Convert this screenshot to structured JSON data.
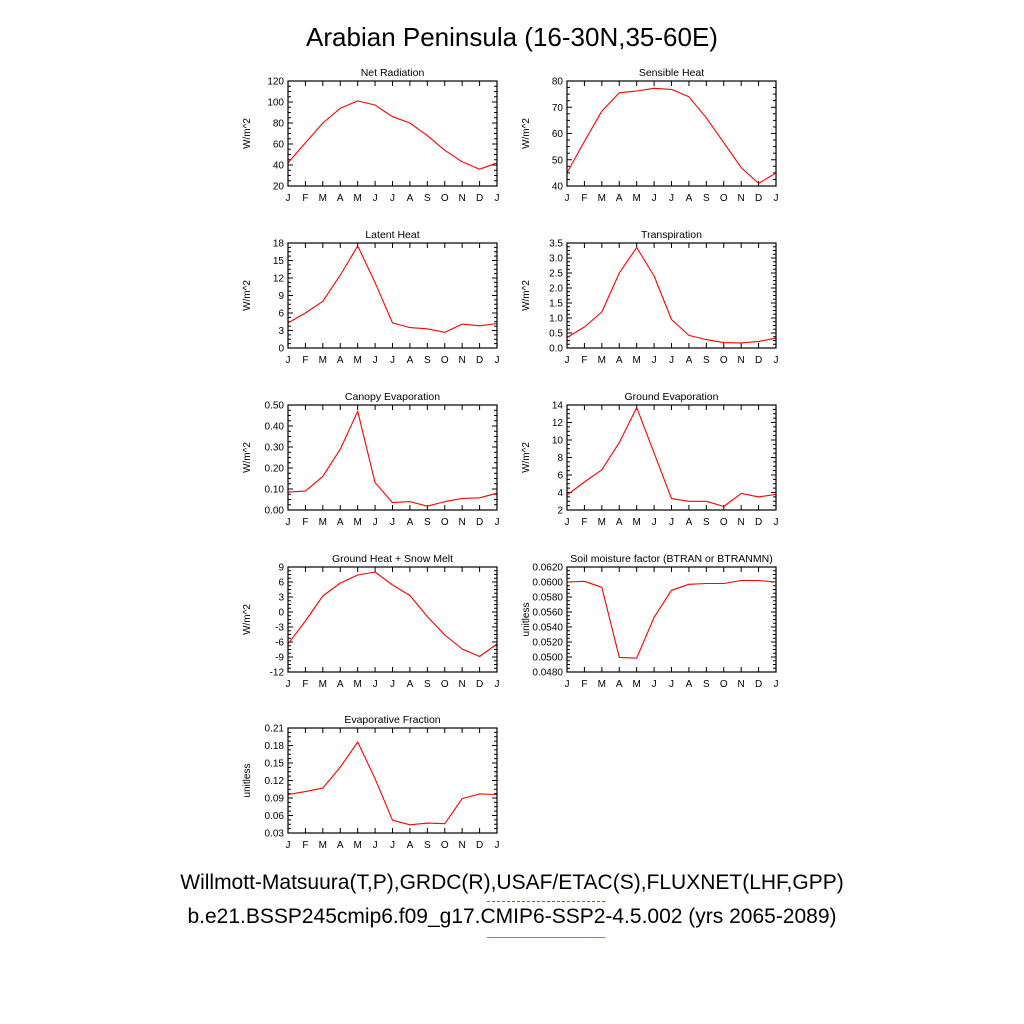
{
  "figure_title": "Arabian Peninsula (16-30N,35-60E)",
  "month_labels": [
    "J",
    "F",
    "M",
    "A",
    "M",
    "J",
    "J",
    "A",
    "S",
    "O",
    "N",
    "D",
    "J"
  ],
  "line_color": "#ff0000",
  "legend": [
    {
      "label": "Willmott-Matsuura(T,P),GRDC(R),USAF/ETAC(S),FLUXNET(LHF,GPP)",
      "color": "#5555ff",
      "style": "dashed"
    },
    {
      "label": "b.e21.BSSP245cmip6.f09_g17.CMIP6-SSP2-4.5.002 (yrs 2065-2089)",
      "color": "#ff5555",
      "style": "solid"
    }
  ],
  "chart_data": [
    {
      "type": "line",
      "title": "Net Radiation",
      "ylabel": "W/m^2",
      "ylim": [
        20,
        120
      ],
      "yticks": [
        20,
        40,
        60,
        80,
        100,
        120
      ],
      "ytick_labels": [
        "20",
        "40",
        "60",
        "80",
        "100",
        "120"
      ],
      "series": [
        {
          "values": [
            42,
            61,
            80,
            94,
            101,
            97,
            86,
            80,
            68,
            54,
            43,
            36,
            42
          ]
        }
      ]
    },
    {
      "type": "line",
      "title": "Sensible Heat",
      "ylabel": "W/m^2",
      "ylim": [
        40,
        80
      ],
      "yticks": [
        40,
        50,
        60,
        70,
        80
      ],
      "ytick_labels": [
        "40",
        "50",
        "60",
        "70",
        "80"
      ],
      "series": [
        {
          "values": [
            45,
            57,
            68.5,
            75.5,
            76.2,
            77.2,
            76.8,
            74,
            66,
            56.5,
            47,
            41,
            45
          ]
        }
      ]
    },
    {
      "type": "line",
      "title": "Latent Heat",
      "ylabel": "W/m^2",
      "ylim": [
        0,
        18
      ],
      "yticks": [
        0,
        3,
        6,
        9,
        12,
        15,
        18
      ],
      "ytick_labels": [
        "0",
        "3",
        "6",
        "9",
        "12",
        "15",
        "18"
      ],
      "series": [
        {
          "values": [
            4.3,
            6,
            8,
            12.5,
            17.5,
            11.2,
            4.3,
            3.5,
            3.3,
            2.7,
            4.1,
            3.8,
            4.2
          ]
        }
      ]
    },
    {
      "type": "line",
      "title": "Transpiration",
      "ylabel": "W/m^2",
      "ylim": [
        0,
        3.5
      ],
      "yticks": [
        0,
        0.5,
        1,
        1.5,
        2,
        2.5,
        3,
        3.5
      ],
      "ytick_labels": [
        "0.0",
        "0.5",
        "1.0",
        "1.5",
        "2.0",
        "2.5",
        "3.0",
        "3.5"
      ],
      "series": [
        {
          "values": [
            0.35,
            0.7,
            1.2,
            2.5,
            3.35,
            2.4,
            0.95,
            0.42,
            0.28,
            0.18,
            0.17,
            0.22,
            0.33
          ]
        }
      ]
    },
    {
      "type": "line",
      "title": "Canopy Evaporation",
      "ylabel": "W/m^2",
      "ylim": [
        0,
        0.5
      ],
      "yticks": [
        0,
        0.1,
        0.2,
        0.3,
        0.4,
        0.5
      ],
      "ytick_labels": [
        "0.00",
        "0.10",
        "0.20",
        "0.30",
        "0.40",
        "0.50"
      ],
      "series": [
        {
          "values": [
            0.085,
            0.09,
            0.16,
            0.29,
            0.47,
            0.13,
            0.035,
            0.04,
            0.018,
            0.04,
            0.055,
            0.058,
            0.08
          ]
        }
      ]
    },
    {
      "type": "line",
      "title": "Ground Evaporation",
      "ylabel": "W/m^2",
      "ylim": [
        2,
        14
      ],
      "yticks": [
        2,
        4,
        6,
        8,
        10,
        12,
        14
      ],
      "ytick_labels": [
        "2",
        "4",
        "6",
        "8",
        "10",
        "12",
        "14"
      ],
      "series": [
        {
          "values": [
            3.7,
            5.2,
            6.6,
            9.7,
            13.7,
            8.5,
            3.3,
            3,
            3,
            2.4,
            3.9,
            3.5,
            3.8
          ]
        }
      ]
    },
    {
      "type": "line",
      "title": "Ground Heat + Snow Melt",
      "ylabel": "W/m^2",
      "ylim": [
        -12,
        9
      ],
      "yticks": [
        -12,
        -9,
        -6,
        -3,
        0,
        3,
        6,
        9
      ],
      "ytick_labels": [
        "-12",
        "-9",
        "-6",
        "-3",
        "0",
        "3",
        "6",
        "9"
      ],
      "series": [
        {
          "values": [
            -6.4,
            -1.8,
            3.2,
            5.8,
            7.4,
            8.0,
            5.4,
            3.3,
            -0.9,
            -4.6,
            -7.4,
            -8.9,
            -6.4
          ]
        }
      ]
    },
    {
      "type": "line",
      "title": "Soil moisture factor (BTRAN or BTRANMN)",
      "ylabel": "unitless",
      "ylim": [
        0.048,
        0.062
      ],
      "yticks": [
        0.048,
        0.05,
        0.052,
        0.054,
        0.056,
        0.058,
        0.06,
        0.062
      ],
      "ytick_labels": [
        "0.0480",
        "0.0500",
        "0.0520",
        "0.0540",
        "0.0560",
        "0.0580",
        "0.0600",
        "0.0620"
      ],
      "series": [
        {
          "values": [
            0.06,
            0.0601,
            0.0593,
            0.04995,
            0.04985,
            0.0553,
            0.0589,
            0.0597,
            0.0598,
            0.0598,
            0.0602,
            0.0602,
            0.06
          ]
        }
      ]
    },
    {
      "type": "line",
      "title": "Evaporative Fraction",
      "ylabel": "unitless",
      "ylim": [
        0.03,
        0.21
      ],
      "yticks": [
        0.03,
        0.06,
        0.09,
        0.12,
        0.15,
        0.18,
        0.21
      ],
      "ytick_labels": [
        "0.03",
        "0.06",
        "0.09",
        "0.12",
        "0.15",
        "0.18",
        "0.21"
      ],
      "series": [
        {
          "values": [
            0.096,
            0.101,
            0.107,
            0.143,
            0.186,
            0.123,
            0.052,
            0.044,
            0.047,
            0.046,
            0.089,
            0.097,
            0.096
          ]
        }
      ]
    }
  ]
}
